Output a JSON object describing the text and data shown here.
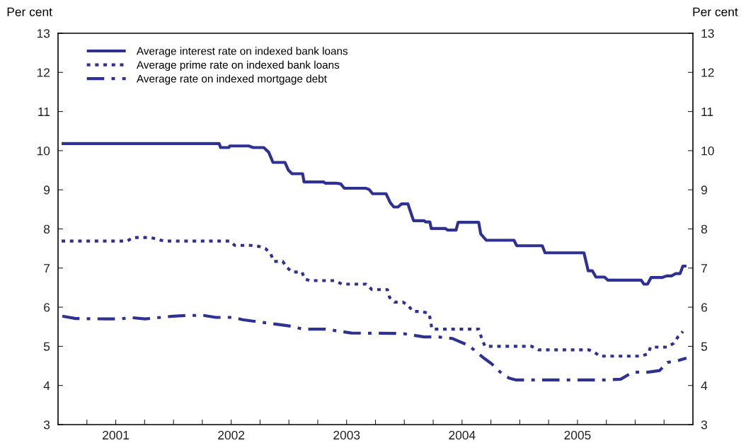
{
  "chart_data": {
    "type": "line",
    "ylabel": "Per cent",
    "y2label": "Per cent",
    "xlim": [
      2001,
      2006.5
    ],
    "xticks": [
      {
        "value": 2001.25,
        "label": null
      },
      {
        "value": 2001.5,
        "label": "2001"
      },
      {
        "value": 2001.75,
        "label": null
      },
      {
        "value": 2002,
        "label": null
      },
      {
        "value": 2002.25,
        "label": null
      },
      {
        "value": 2002.5,
        "label": "2002"
      },
      {
        "value": 2002.75,
        "label": null
      },
      {
        "value": 2003,
        "label": null
      },
      {
        "value": 2003.25,
        "label": null
      },
      {
        "value": 2003.5,
        "label": "2003"
      },
      {
        "value": 2003.75,
        "label": null
      },
      {
        "value": 2004,
        "label": null
      },
      {
        "value": 2004.25,
        "label": null
      },
      {
        "value": 2004.5,
        "label": "2004"
      },
      {
        "value": 2004.75,
        "label": null
      },
      {
        "value": 2005,
        "label": null
      },
      {
        "value": 2005.25,
        "label": null
      },
      {
        "value": 2005.5,
        "label": "2005"
      },
      {
        "value": 2005.75,
        "label": null
      },
      {
        "value": 2006,
        "label": null
      },
      {
        "value": 2006.25,
        "label": null
      }
    ],
    "ylim": [
      3,
      13
    ],
    "yticks": [
      3,
      4,
      5,
      6,
      7,
      8,
      9,
      10,
      11,
      12,
      13
    ],
    "y2lim": [
      3,
      13
    ],
    "y2ticks": [
      3,
      4,
      5,
      6,
      7,
      8,
      9,
      10,
      11,
      12,
      13
    ],
    "grid": false,
    "legend": "top left",
    "series": [
      {
        "name": "Average interest rate on indexed bank loans",
        "color": "#2e3192",
        "line_style": "solid",
        "x": [
          2001.031,
          2002.396,
          2002.408,
          2002.48,
          2002.488,
          2002.653,
          2002.69,
          2002.782,
          2002.825,
          2002.862,
          2002.966,
          2002.996,
          2003.027,
          2003.119,
          2003.131,
          2003.302,
          2003.315,
          2003.407,
          2003.449,
          2003.48,
          2003.664,
          2003.694,
          2003.725,
          2003.841,
          2003.878,
          2003.909,
          2003.945,
          2003.976,
          2004.031,
          2004.05,
          2004.08,
          2004.172,
          2004.184,
          2004.221,
          2004.233,
          2004.356,
          2004.374,
          2004.448,
          2004.466,
          2004.644,
          2004.662,
          2004.711,
          2004.95,
          2004.974,
          2005.195,
          2005.219,
          2005.556,
          2005.593,
          2005.629,
          2005.66,
          2005.734,
          2005.764,
          2006.052,
          2006.076,
          2006.107,
          2006.138,
          2006.236,
          2006.272,
          2006.315,
          2006.352,
          2006.389,
          2006.413,
          2006.444
        ],
        "values": [
          10.18,
          10.18,
          10.08,
          10.08,
          10.12,
          10.12,
          10.08,
          10.08,
          9.96,
          9.7,
          9.7,
          9.5,
          9.41,
          9.41,
          9.2,
          9.2,
          9.17,
          9.17,
          9.15,
          9.04,
          9.04,
          9.01,
          8.9,
          8.9,
          8.67,
          8.56,
          8.56,
          8.64,
          8.64,
          8.47,
          8.21,
          8.21,
          8.18,
          8.18,
          8.01,
          8.01,
          7.97,
          7.97,
          8.17,
          8.17,
          7.87,
          7.71,
          7.71,
          7.57,
          7.57,
          7.39,
          7.39,
          6.93,
          6.93,
          6.77,
          6.77,
          6.69,
          6.69,
          6.59,
          6.59,
          6.76,
          6.76,
          6.8,
          6.8,
          6.86,
          6.86,
          7.05,
          7.05
        ]
      },
      {
        "name": "Average prime rate on indexed bank loans",
        "color": "#2e3192",
        "line_style": "dotted",
        "x": [
          2001.031,
          2001.6,
          2001.649,
          2001.802,
          2001.857,
          2001.919,
          2002.488,
          2002.531,
          2002.672,
          2002.745,
          2002.8,
          2002.843,
          2002.868,
          2002.947,
          2002.978,
          2003.027,
          2003.113,
          2003.137,
          2003.18,
          2003.394,
          2003.462,
          2003.67,
          2003.719,
          2003.854,
          2003.872,
          2003.915,
          2003.988,
          2004.037,
          2004.074,
          2004.148,
          2004.215,
          2004.227,
          2004.239,
          2004.644,
          2004.674,
          2004.699,
          2005.103,
          2005.164,
          2005.599,
          2005.648,
          2005.691,
          2006.052,
          2006.113,
          2006.132,
          2006.279,
          2006.334,
          2006.37,
          2006.413
        ],
        "values": [
          7.69,
          7.69,
          7.78,
          7.78,
          7.74,
          7.69,
          7.69,
          7.58,
          7.58,
          7.55,
          7.49,
          7.36,
          7.17,
          7.17,
          7.03,
          6.9,
          6.9,
          6.72,
          6.68,
          6.68,
          6.59,
          6.59,
          6.45,
          6.45,
          6.25,
          6.13,
          6.13,
          6.03,
          5.89,
          5.89,
          5.84,
          5.65,
          5.44,
          5.44,
          5.17,
          5.0,
          5.0,
          4.91,
          4.91,
          4.85,
          4.75,
          4.75,
          4.81,
          4.98,
          4.98,
          5.08,
          5.24,
          5.38
        ]
      },
      {
        "name": "Average rate on indexed mortgage debt",
        "color": "#2e3192",
        "line_style": "dashdot",
        "x": [
          2001.037,
          2001.153,
          2001.416,
          2001.551,
          2001.618,
          2001.753,
          2001.998,
          2002.121,
          2002.261,
          2002.366,
          2002.519,
          2002.598,
          2002.776,
          2002.904,
          2003.027,
          2003.119,
          2003.315,
          2003.541,
          2003.927,
          2004.001,
          2004.172,
          2004.295,
          2004.417,
          2004.558,
          2004.693,
          2004.754,
          2004.846,
          2004.907,
          2004.968,
          2005.734,
          2005.874,
          2005.979,
          2006.113,
          2006.211,
          2006.279,
          2006.377,
          2006.444
        ],
        "values": [
          5.77,
          5.71,
          5.7,
          5.7,
          5.74,
          5.7,
          5.77,
          5.79,
          5.79,
          5.74,
          5.74,
          5.68,
          5.61,
          5.56,
          5.51,
          5.44,
          5.44,
          5.34,
          5.33,
          5.32,
          5.24,
          5.24,
          5.2,
          5.02,
          4.69,
          4.56,
          4.3,
          4.19,
          4.14,
          4.14,
          4.16,
          4.34,
          4.34,
          4.38,
          4.59,
          4.64,
          4.7
        ]
      }
    ]
  }
}
